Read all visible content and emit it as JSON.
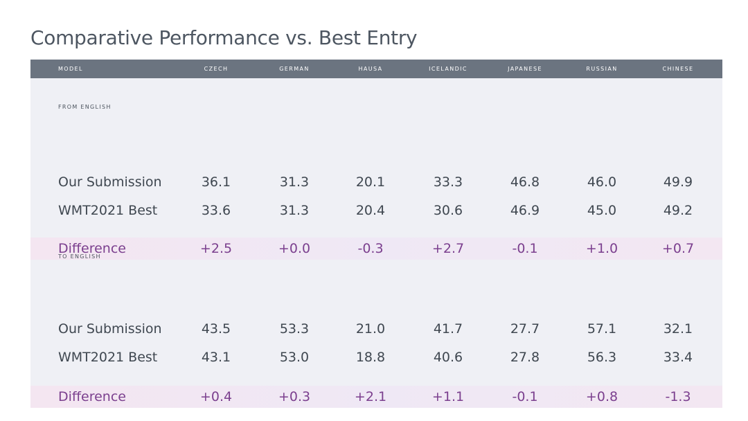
{
  "title": "Comparative Performance vs. Best Entry",
  "table": {
    "columns": [
      "MODEL",
      "CZECH",
      "GERMAN",
      "HAUSA",
      "ICELANDIC",
      "JAPANESE",
      "RUSSIAN",
      "CHINESE"
    ],
    "sections": [
      {
        "label": "FROM ENGLISH",
        "rows": [
          [
            "Our Submission",
            "36.1",
            "31.3",
            "20.1",
            "33.3",
            "46.8",
            "46.0",
            "49.9"
          ],
          [
            "WMT2021 Best",
            "33.6",
            "31.3",
            "20.4",
            "30.6",
            "46.9",
            "45.0",
            "49.2"
          ],
          [
            "Difference",
            "+2.5",
            "+0.0",
            "-0.3",
            "+2.7",
            "-0.1",
            "+1.0",
            "+0.7"
          ]
        ]
      },
      {
        "label": "TO ENGLISH",
        "rows": [
          [
            "Our Submission",
            "43.5",
            "53.3",
            "21.0",
            "41.7",
            "27.7",
            "57.1",
            "32.1"
          ],
          [
            "WMT2021 Best",
            "43.1",
            "53.0",
            "18.8",
            "40.6",
            "27.8",
            "56.3",
            "33.4"
          ],
          [
            "Difference",
            "+0.4",
            "+0.3",
            "+2.1",
            "+1.1",
            "-0.1",
            "+0.8",
            "-1.3"
          ]
        ]
      }
    ]
  }
}
